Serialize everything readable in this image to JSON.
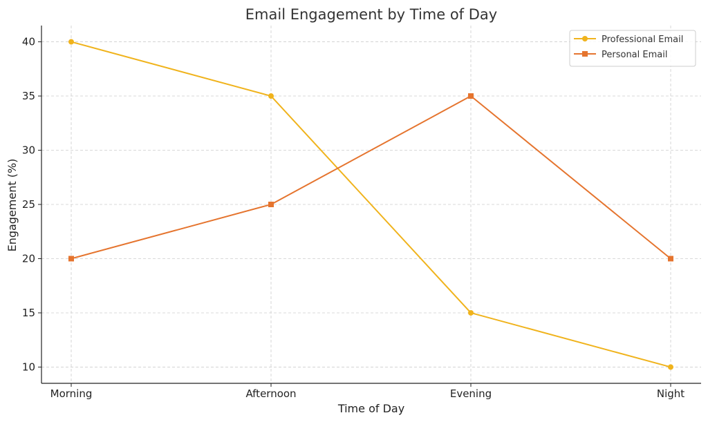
{
  "chart_data": {
    "type": "line",
    "title": "Email Engagement by Time of Day",
    "xlabel": "Time of Day",
    "ylabel": "Engagement (%)",
    "categories": [
      "Morning",
      "Afternoon",
      "Evening",
      "Night"
    ],
    "ylim": [
      8.5,
      41.5
    ],
    "yticks": [
      10,
      15,
      20,
      25,
      30,
      35,
      40
    ],
    "grid": true,
    "legend_position": "top-right",
    "series": [
      {
        "name": "Professional Email",
        "values": [
          40,
          35,
          15,
          10
        ],
        "color": "#f0b31c",
        "marker": "circle"
      },
      {
        "name": "Personal Email",
        "values": [
          20,
          25,
          35,
          20
        ],
        "color": "#e5742e",
        "marker": "square"
      }
    ]
  }
}
